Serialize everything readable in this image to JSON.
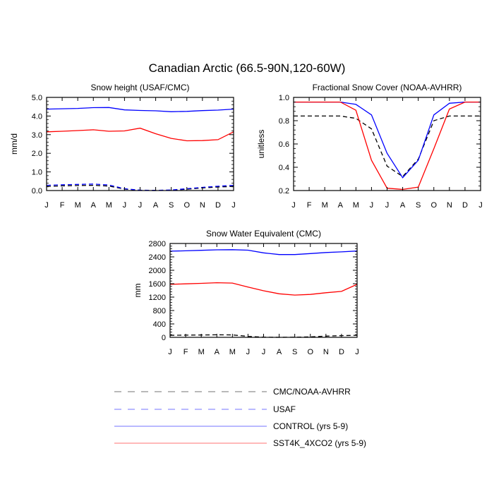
{
  "figure_title": "Canadian Arctic (66.5-90N,120-60W)",
  "legend": {
    "items": [
      {
        "label": "CMC/NOAA-AVHRR",
        "color": "#000000",
        "dash": "dashed"
      },
      {
        "label": "USAF",
        "color": "#0000ff",
        "dash": "dashed"
      },
      {
        "label": "CONTROL (yrs 5-9)",
        "color": "#0000ff",
        "dash": "solid"
      },
      {
        "label": "SST4K_4XCO2 (yrs 5-9)",
        "color": "#ff0000",
        "dash": "solid"
      }
    ]
  },
  "chart_data": [
    {
      "type": "line",
      "title": "Snow height (USAF/CMC)",
      "ylabel": "mm/d",
      "xlabel": "",
      "categories": [
        "J",
        "F",
        "M",
        "A",
        "M",
        "J",
        "J",
        "A",
        "S",
        "O",
        "N",
        "D",
        "J"
      ],
      "ylim": [
        0,
        5
      ],
      "yticks": [
        0,
        1,
        2,
        3,
        4,
        5
      ],
      "ytick_labels": [
        "0.0",
        "1.0",
        "2.0",
        "3.0",
        "4.0",
        "5.0"
      ],
      "series": [
        {
          "color": "#0000ff",
          "dash": "solid",
          "values": [
            4.37,
            4.39,
            4.41,
            4.45,
            4.46,
            4.33,
            4.3,
            4.28,
            4.23,
            4.25,
            4.29,
            4.32,
            4.37
          ]
        },
        {
          "color": "#ff0000",
          "dash": "solid",
          "values": [
            3.15,
            3.18,
            3.22,
            3.26,
            3.18,
            3.2,
            3.35,
            3.05,
            2.8,
            2.67,
            2.68,
            2.73,
            3.15
          ]
        },
        {
          "color": "#000000",
          "dash": "dashed",
          "values": [
            0.22,
            0.25,
            0.27,
            0.28,
            0.24,
            0.08,
            0.01,
            0.0,
            0.02,
            0.07,
            0.14,
            0.19,
            0.22
          ]
        },
        {
          "color": "#0000ff",
          "dash": "dashed",
          "values": [
            0.28,
            0.31,
            0.33,
            0.35,
            0.3,
            0.1,
            0.02,
            0.01,
            0.03,
            0.1,
            0.17,
            0.23,
            0.28
          ]
        }
      ]
    },
    {
      "type": "line",
      "title": "Fractional Snow Cover (NOAA-AVHRR)",
      "ylabel": "unitless",
      "xlabel": "",
      "categories": [
        "J",
        "F",
        "M",
        "A",
        "M",
        "J",
        "J",
        "A",
        "S",
        "O",
        "N",
        "D",
        "J"
      ],
      "ylim": [
        0.2,
        1.0
      ],
      "yticks": [
        0.2,
        0.4,
        0.6,
        0.8,
        1.0
      ],
      "ytick_labels": [
        "0.2",
        "0.4",
        "0.6",
        "0.8",
        "1.0"
      ],
      "series": [
        {
          "color": "#000000",
          "dash": "dashed",
          "values": [
            0.84,
            0.84,
            0.84,
            0.84,
            0.82,
            0.73,
            0.41,
            0.32,
            0.47,
            0.8,
            0.84,
            0.84,
            0.84
          ]
        },
        {
          "color": "#0000ff",
          "dash": "solid",
          "values": [
            0.96,
            0.96,
            0.96,
            0.96,
            0.94,
            0.85,
            0.52,
            0.31,
            0.46,
            0.85,
            0.95,
            0.96,
            0.96
          ]
        },
        {
          "color": "#ff0000",
          "dash": "solid",
          "values": [
            0.96,
            0.96,
            0.96,
            0.96,
            0.89,
            0.46,
            0.22,
            0.21,
            0.23,
            0.56,
            0.9,
            0.96,
            0.96
          ]
        }
      ]
    },
    {
      "type": "line",
      "title": "Snow Water Equivalent (CMC)",
      "ylabel": "mm",
      "xlabel": "",
      "categories": [
        "J",
        "F",
        "M",
        "A",
        "M",
        "J",
        "J",
        "A",
        "S",
        "O",
        "N",
        "D",
        "J"
      ],
      "ylim": [
        0,
        2800
      ],
      "yticks": [
        0,
        400,
        800,
        1200,
        1600,
        2000,
        2400,
        2800
      ],
      "ytick_labels": [
        "0",
        "400",
        "800",
        "1200",
        "1600",
        "2000",
        "2400",
        "2800"
      ],
      "series": [
        {
          "color": "#0000ff",
          "dash": "solid",
          "values": [
            2570,
            2580,
            2595,
            2610,
            2615,
            2600,
            2520,
            2470,
            2470,
            2500,
            2530,
            2550,
            2575
          ]
        },
        {
          "color": "#ff0000",
          "dash": "solid",
          "values": [
            1580,
            1595,
            1610,
            1630,
            1620,
            1500,
            1390,
            1300,
            1260,
            1280,
            1330,
            1370,
            1580
          ]
        },
        {
          "color": "#000000",
          "dash": "dashed",
          "values": [
            60,
            65,
            70,
            75,
            72,
            30,
            5,
            0,
            5,
            15,
            35,
            50,
            60
          ]
        }
      ]
    }
  ]
}
